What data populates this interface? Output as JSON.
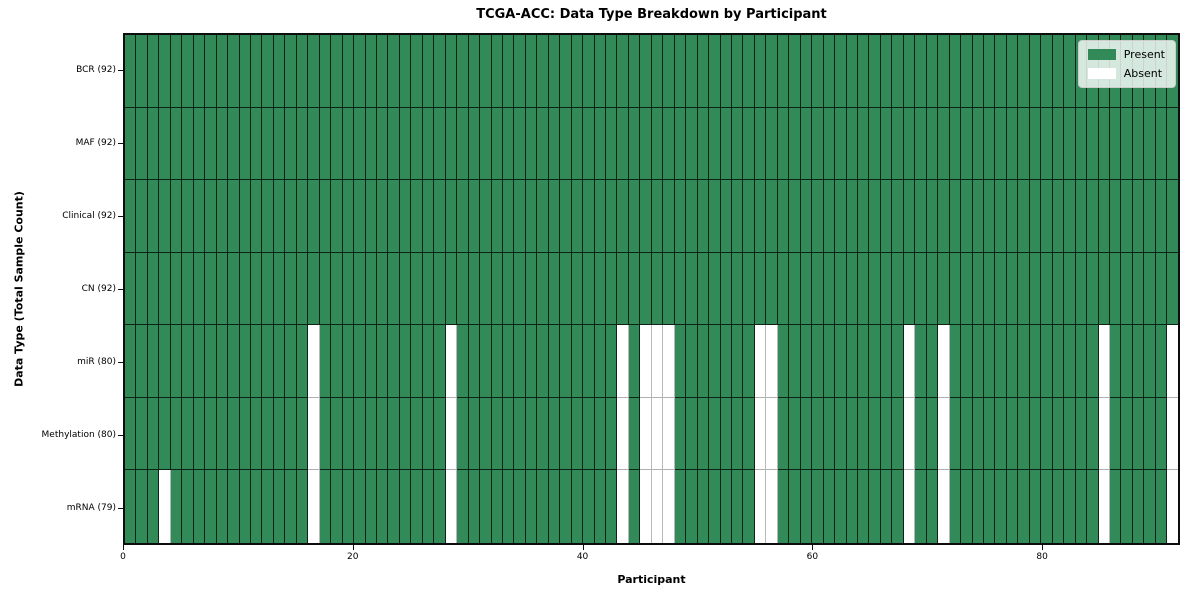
{
  "chart_data": {
    "type": "heatmap",
    "title": "TCGA-ACC: Data Type Breakdown by Participant",
    "xlabel": "Participant",
    "ylabel": "Data Type (Total Sample Count)",
    "n_participants": 92,
    "x_ticks": [
      0,
      20,
      40,
      60,
      80
    ],
    "grid": true,
    "legend_position": "upper right",
    "legend": [
      {
        "label": "Present",
        "color": "#318a58"
      },
      {
        "label": "Absent",
        "color": "#ffffff"
      }
    ],
    "rows": [
      {
        "label": "BCR (92)",
        "present_count": 92,
        "absent_indices": []
      },
      {
        "label": "MAF (92)",
        "present_count": 92,
        "absent_indices": []
      },
      {
        "label": "Clinical (92)",
        "present_count": 92,
        "absent_indices": []
      },
      {
        "label": "CN (92)",
        "present_count": 92,
        "absent_indices": []
      },
      {
        "label": "miR (80)",
        "present_count": 80,
        "absent_indices": [
          16,
          28,
          43,
          45,
          46,
          47,
          55,
          56,
          68,
          71,
          85,
          91
        ]
      },
      {
        "label": "Methylation (80)",
        "present_count": 80,
        "absent_indices": [
          16,
          28,
          43,
          45,
          46,
          47,
          55,
          56,
          68,
          71,
          85,
          91
        ]
      },
      {
        "label": "mRNA (79)",
        "present_count": 79,
        "absent_indices": [
          3,
          16,
          28,
          43,
          45,
          46,
          47,
          55,
          56,
          68,
          71,
          85,
          91
        ]
      }
    ],
    "colors": {
      "present": "#318a58",
      "absent": "#ffffff",
      "grid_line": "rgba(0,0,0,0.75)",
      "absent_grid_line": "#b8b8b8",
      "spine": "#0d0d0d"
    }
  }
}
